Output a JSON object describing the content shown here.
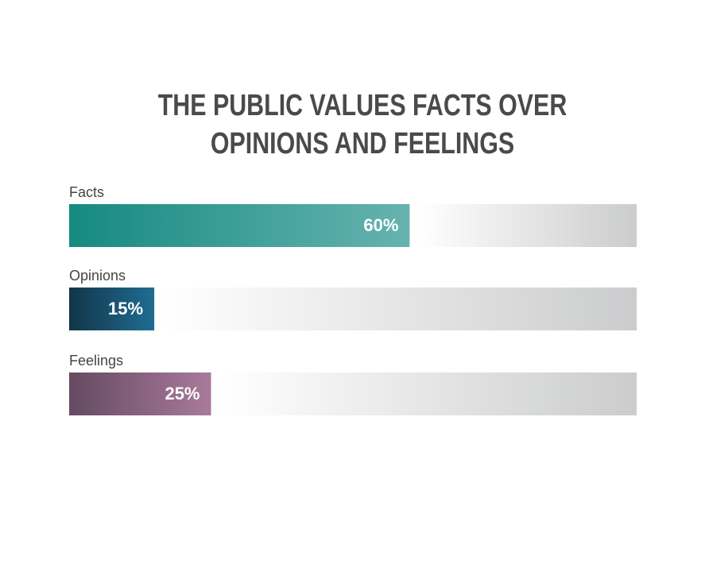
{
  "chart_data": {
    "type": "bar",
    "orientation": "horizontal",
    "title": "THE PUBLIC VALUES FACTS OVER OPINIONS AND FEELINGS",
    "categories": [
      "Facts",
      "Opinions",
      "Feelings"
    ],
    "values": [
      60,
      15,
      25
    ],
    "value_labels": [
      "60%",
      "15%",
      "25%"
    ],
    "colors": [
      [
        "#168a80",
        "#66b3b0"
      ],
      [
        "#123548",
        "#1f6d93"
      ],
      [
        "#654a62",
        "#a97a9a"
      ]
    ],
    "xlim": [
      0,
      100
    ]
  }
}
